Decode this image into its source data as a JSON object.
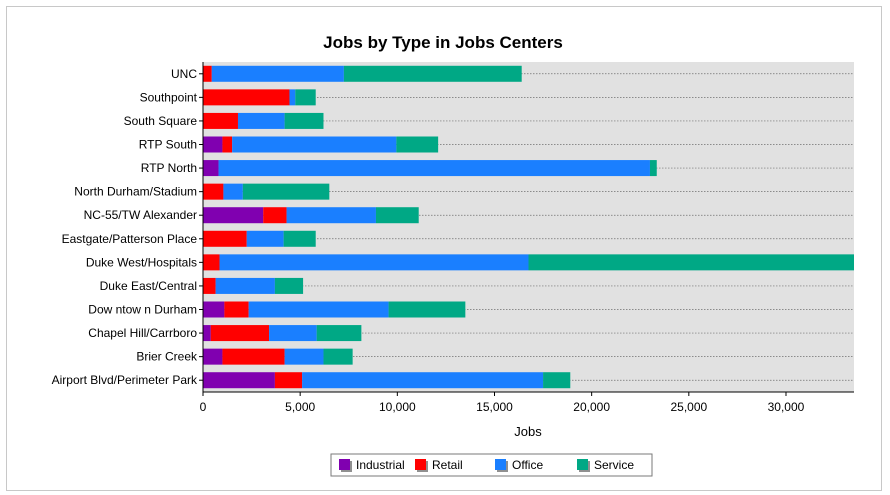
{
  "chart_data": {
    "type": "bar",
    "orientation": "horizontal",
    "stacked": true,
    "title": "Jobs by Type in Jobs Centers",
    "xlabel": "Jobs",
    "ylabel": "",
    "xlim": [
      0,
      33500
    ],
    "xticks": [
      0,
      5000,
      10000,
      15000,
      20000,
      25000,
      30000
    ],
    "xtick_labels": [
      "0",
      "5,000",
      "10,000",
      "15,000",
      "20,000",
      "25,000",
      "30,000"
    ],
    "grid": "horizontal dotted",
    "legend_position": "bottom",
    "categories": [
      "UNC",
      "Southpoint",
      "South Square",
      "RTP South",
      "RTP North",
      "North Durham/Stadium",
      "NC-55/TW Alexander",
      "Eastgate/Patterson Place",
      "Duke West/Hospitals",
      "Duke East/Central",
      "Dow ntow n Durham",
      "Chapel Hill/Carrboro",
      "Brier Creek",
      "Airport Blvd/Perimeter Park"
    ],
    "series": [
      {
        "name": "Industrial",
        "color": "#8000b0",
        "values": [
          0,
          0,
          0,
          1000,
          800,
          0,
          3100,
          0,
          0,
          0,
          1100,
          400,
          1000,
          3700
        ]
      },
      {
        "name": "Retail",
        "color": "#ff0000",
        "values": [
          450,
          4450,
          1800,
          500,
          0,
          1050,
          1200,
          2250,
          850,
          650,
          1250,
          3000,
          3200,
          1400
        ]
      },
      {
        "name": "Office",
        "color": "#1a7fff",
        "values": [
          6800,
          300,
          2400,
          8450,
          22200,
          1000,
          4600,
          1900,
          15900,
          3050,
          7200,
          2450,
          2000,
          12400
        ]
      },
      {
        "name": "Service",
        "color": "#00a885",
        "values": [
          9150,
          1050,
          2000,
          2150,
          350,
          4450,
          2200,
          1650,
          16750,
          1450,
          3950,
          2300,
          1500,
          1400
        ]
      }
    ]
  }
}
